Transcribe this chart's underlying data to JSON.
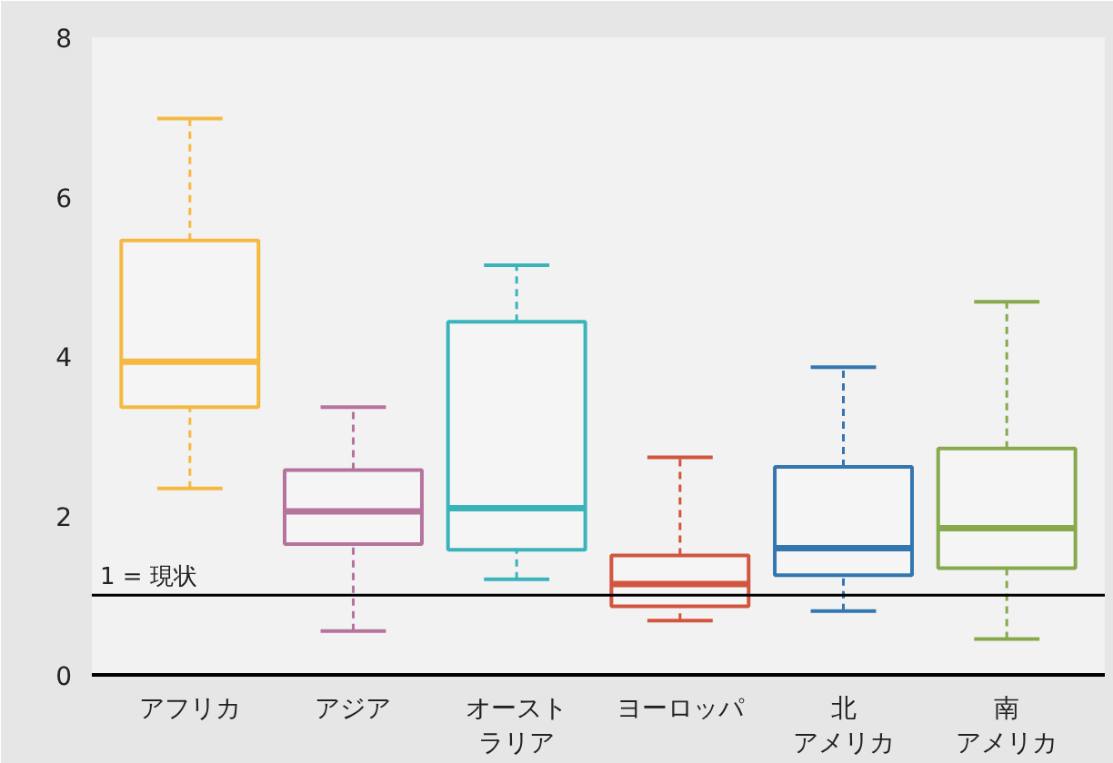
{
  "chart_data": {
    "type": "box",
    "categories": [
      "アフリカ",
      "アジア",
      "オーストラリア",
      "ヨーロッパ",
      "北アメリカ",
      "南アメリカ"
    ],
    "colors": [
      "#f5b942",
      "#b5739d",
      "#3bb3bb",
      "#d2553f",
      "#3476b0",
      "#87a94e"
    ],
    "boxes": [
      {
        "low": 2.34,
        "q1": 3.36,
        "median": 3.93,
        "q3": 5.45,
        "high": 6.98
      },
      {
        "low": 0.55,
        "q1": 1.64,
        "median": 2.05,
        "q3": 2.57,
        "high": 3.36
      },
      {
        "low": 1.2,
        "q1": 1.57,
        "median": 2.09,
        "q3": 4.43,
        "high": 5.14
      },
      {
        "low": 0.68,
        "q1": 0.86,
        "median": 1.14,
        "q3": 1.5,
        "high": 2.73
      },
      {
        "low": 0.8,
        "q1": 1.25,
        "median": 1.59,
        "q3": 2.61,
        "high": 3.86
      },
      {
        "low": 0.45,
        "q1": 1.34,
        "median": 1.84,
        "q3": 2.84,
        "high": 4.68
      }
    ],
    "ylim": [
      0,
      8
    ],
    "yticks": [
      0,
      2,
      4,
      6,
      8
    ],
    "ref_lines": [
      {
        "axis": "y",
        "value": 1,
        "label": "1 = 現状",
        "color": "#000000"
      }
    ],
    "grid": false,
    "line_style": "dashed"
  }
}
